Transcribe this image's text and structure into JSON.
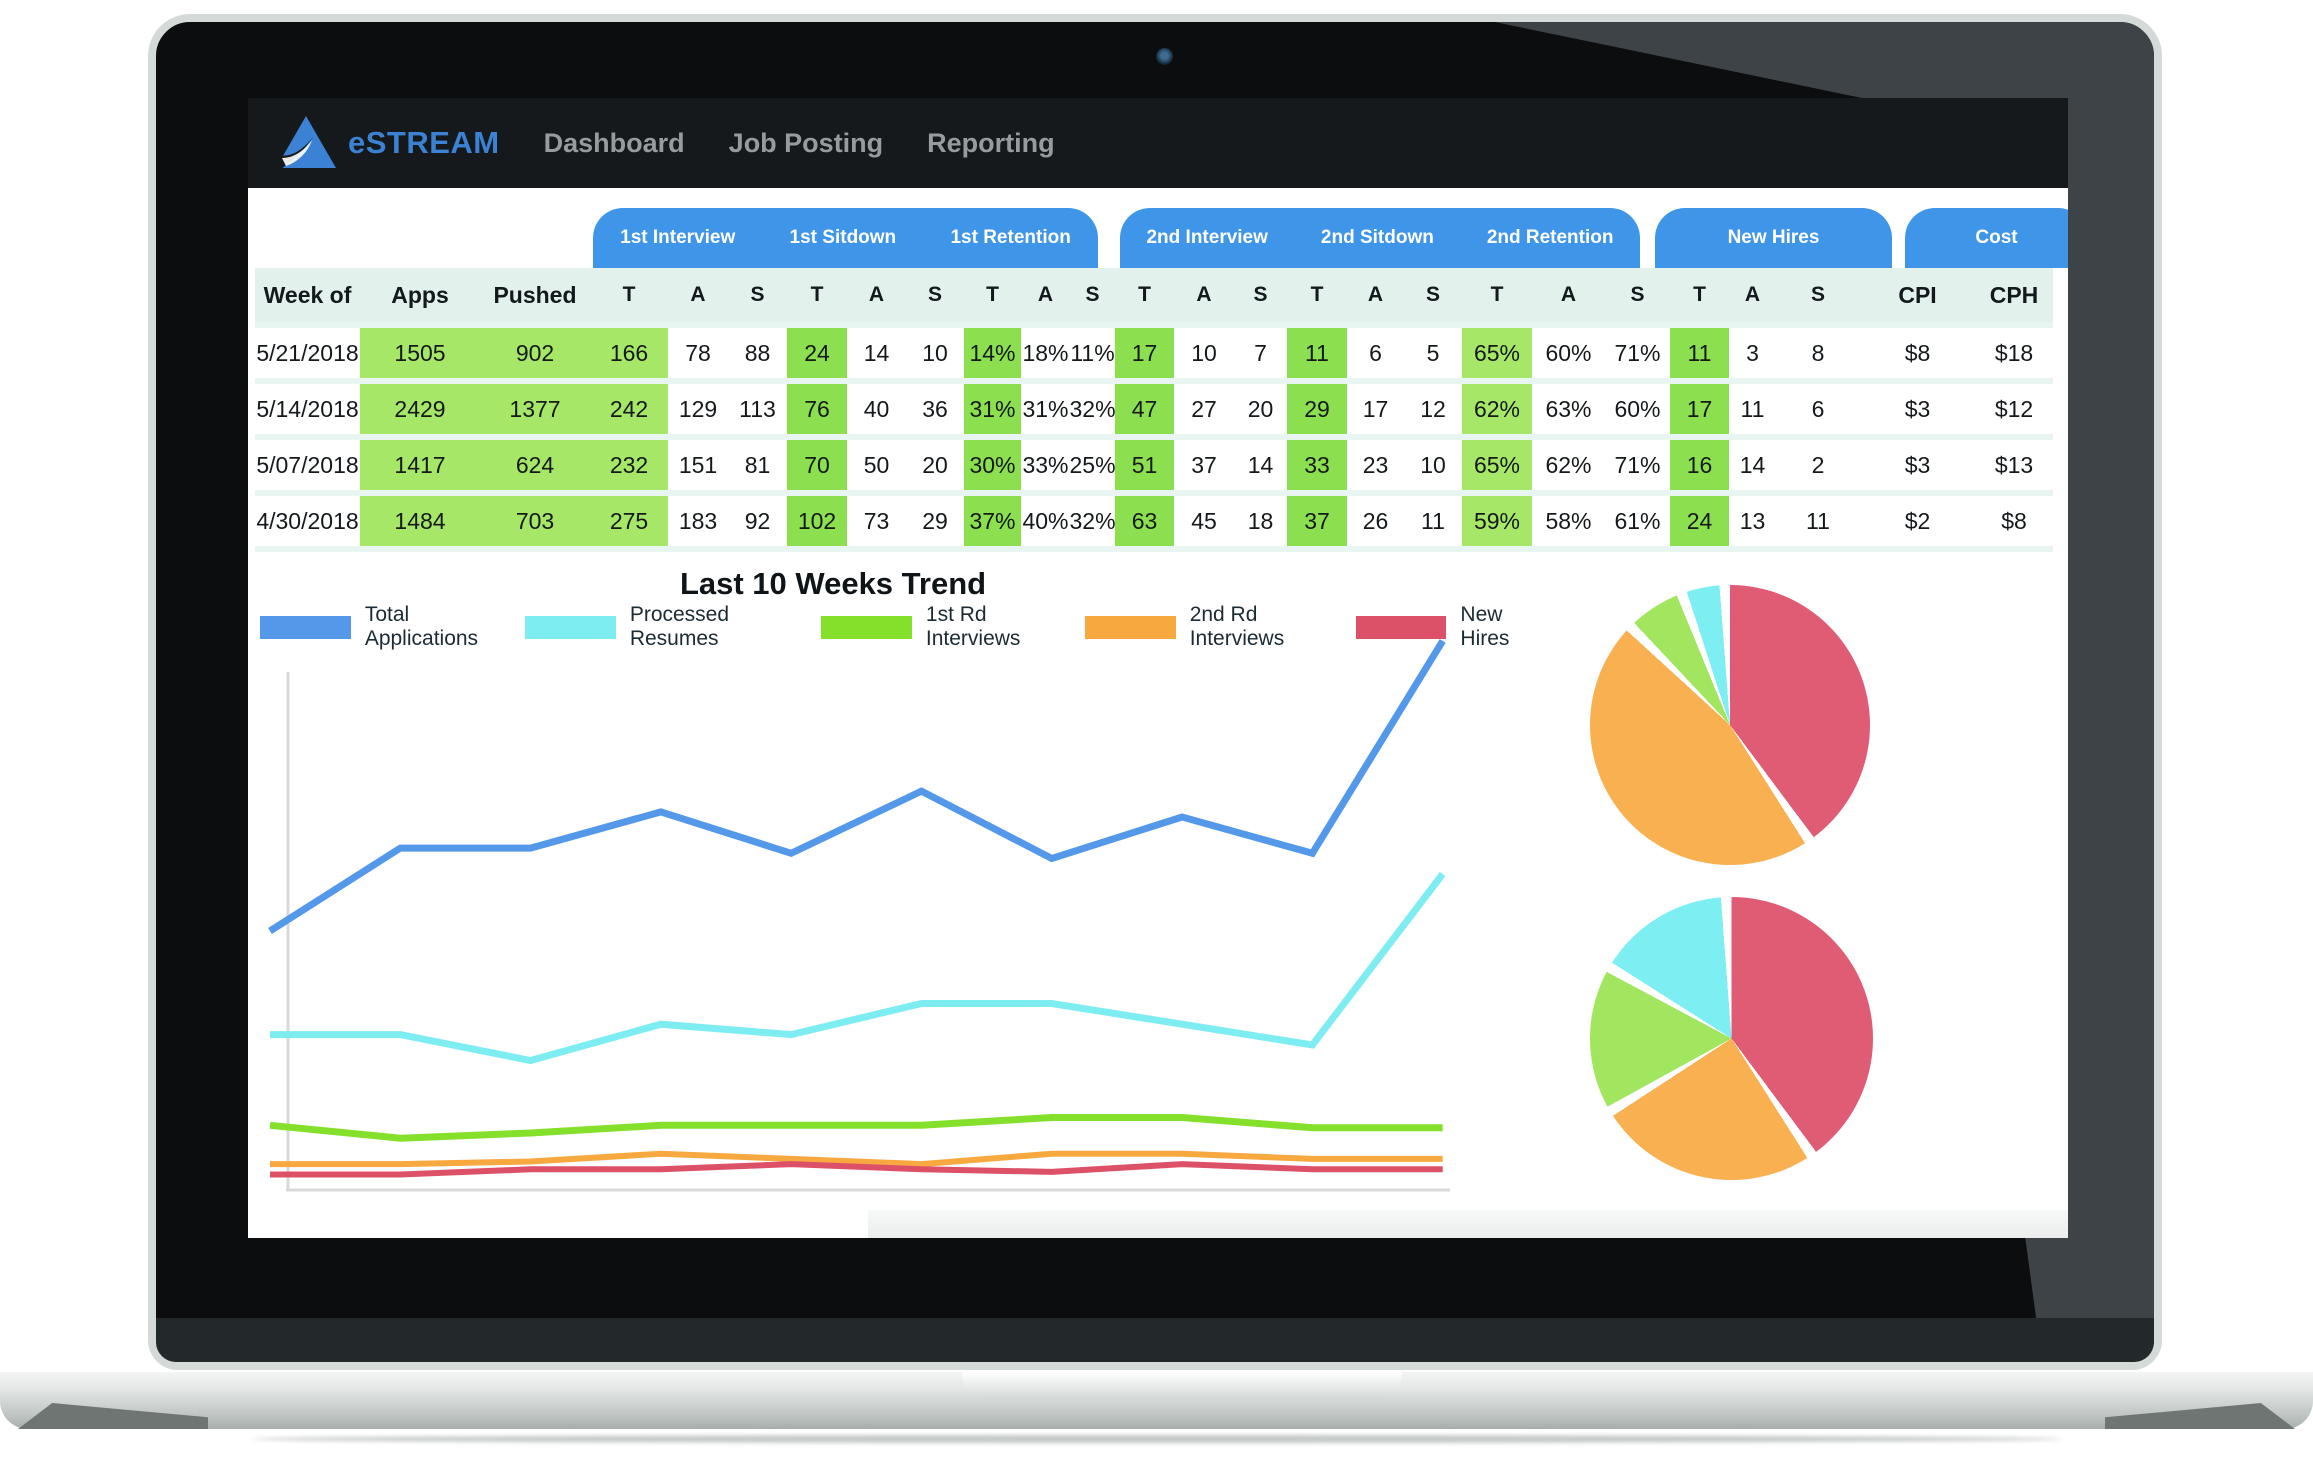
{
  "navbar": {
    "brand": "eSTREAM",
    "items": [
      "Dashboard",
      "Job Posting",
      "Reporting"
    ]
  },
  "colors": {
    "navbar_bg": "#16191b",
    "brand_blue": "#3b82d4",
    "nav_gray": "#969c9d",
    "tab_blue": "#3f96e8",
    "header_mint": "#e3f1ec",
    "row_gap_mint": "#e9f5f1",
    "green_light": "#a6e768",
    "green_strong": "#8ce04f",
    "axis_gray": "#d9d9d9"
  },
  "table": {
    "tab_groups": [
      {
        "labels": [
          "1st Interview",
          "1st Sitdown",
          "1st Retention"
        ]
      },
      {
        "labels": [
          "2nd Interview",
          "2nd Sitdown",
          "2nd Retention"
        ]
      },
      {
        "labels": [
          "New Hires"
        ]
      },
      {
        "labels": [
          "Cost"
        ]
      }
    ],
    "columns": [
      "Week of",
      "Apps",
      "Pushed",
      "T",
      "A",
      "S",
      "T",
      "A",
      "S",
      "T",
      "A",
      "S",
      "T",
      "A",
      "S",
      "T",
      "A",
      "S",
      "T",
      "A",
      "S",
      "T",
      "A",
      "S",
      "CPI",
      "CPH"
    ],
    "highlight_columns": {
      "light": [
        1,
        2,
        3,
        18
      ],
      "strong": [
        6,
        9,
        12,
        15,
        21
      ]
    },
    "rows": [
      {
        "cells": [
          "5/21/2018",
          "1505",
          "902",
          "166",
          "78",
          "88",
          "24",
          "14",
          "10",
          "14%",
          "18%",
          "11%",
          "17",
          "10",
          "7",
          "11",
          "6",
          "5",
          "65%",
          "60%",
          "71%",
          "11",
          "3",
          "8",
          "$8",
          "$18"
        ]
      },
      {
        "cells": [
          "5/14/2018",
          "2429",
          "1377",
          "242",
          "129",
          "113",
          "76",
          "40",
          "36",
          "31%",
          "31%",
          "32%",
          "47",
          "27",
          "20",
          "29",
          "17",
          "12",
          "62%",
          "63%",
          "60%",
          "17",
          "11",
          "6",
          "$3",
          "$12"
        ]
      },
      {
        "cells": [
          "5/07/2018",
          "1417",
          "624",
          "232",
          "151",
          "81",
          "70",
          "50",
          "20",
          "30%",
          "33%",
          "25%",
          "51",
          "37",
          "14",
          "33",
          "23",
          "10",
          "65%",
          "62%",
          "71%",
          "16",
          "14",
          "2",
          "$3",
          "$13"
        ]
      },
      {
        "cells": [
          "4/30/2018",
          "1484",
          "703",
          "275",
          "183",
          "92",
          "102",
          "73",
          "29",
          "37%",
          "40%",
          "32%",
          "63",
          "45",
          "18",
          "37",
          "26",
          "11",
          "59%",
          "58%",
          "61%",
          "24",
          "13",
          "11",
          "$2",
          "$8"
        ]
      }
    ]
  },
  "chart_data": [
    {
      "type": "line",
      "title": "Last 10 Weeks Trend",
      "xlabel": "",
      "ylabel": "",
      "x": [
        1,
        2,
        3,
        4,
        5,
        6,
        7,
        8,
        9,
        10
      ],
      "axis_note": "axes are unlabeled; values estimated as percent of plot height from baseline",
      "ylim": [
        0,
        100
      ],
      "grid": false,
      "legend_position": "top",
      "series": [
        {
          "name": "Total Applications",
          "color": "#5498ea",
          "values": [
            50,
            66,
            66,
            73,
            65,
            77,
            64,
            72,
            65,
            106
          ]
        },
        {
          "name": "Processed Resumes",
          "color": "#7dedf2",
          "values": [
            30,
            30,
            25,
            32,
            30,
            36,
            36,
            32,
            28,
            61
          ]
        },
        {
          "name": "1st Rd Interviews",
          "color": "#85e02b",
          "values": [
            12.5,
            10,
            11,
            12.5,
            12.5,
            12.5,
            14,
            14,
            12,
            12
          ]
        },
        {
          "name": "2nd Rd Interviews",
          "color": "#f7a83e",
          "values": [
            5,
            5,
            5.5,
            7,
            6,
            5,
            7,
            7,
            6,
            6
          ]
        },
        {
          "name": "New Hires",
          "color": "#dc5068",
          "values": [
            3,
            3,
            4,
            4,
            5,
            4,
            3.5,
            5,
            4,
            4
          ]
        }
      ]
    },
    {
      "type": "pie",
      "title": "",
      "start_angle_deg": 0,
      "direction": "clockwise",
      "slices": [
        {
          "label": "red",
          "pct": 41,
          "color": "#e05c74"
        },
        {
          "label": "orange",
          "pct": 47,
          "color": "#f9b050"
        },
        {
          "label": "green",
          "pct": 7,
          "color": "#a2e65f"
        },
        {
          "label": "cyan",
          "pct": 5,
          "color": "#7deef2"
        }
      ]
    },
    {
      "type": "pie",
      "title": "",
      "start_angle_deg": 0,
      "direction": "clockwise",
      "slices": [
        {
          "label": "red",
          "pct": 41,
          "color": "#e05c74"
        },
        {
          "label": "orange",
          "pct": 26,
          "color": "#f9b050"
        },
        {
          "label": "green",
          "pct": 17,
          "color": "#a2e65f"
        },
        {
          "label": "cyan",
          "pct": 16,
          "color": "#7deef2"
        }
      ]
    }
  ]
}
